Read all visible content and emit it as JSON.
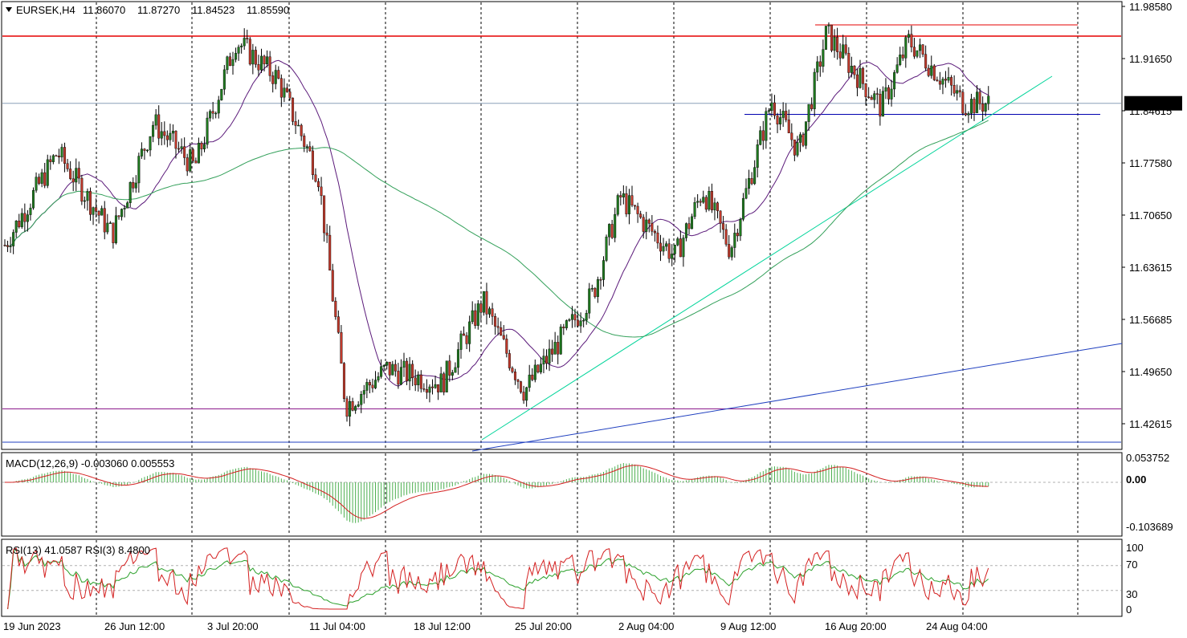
{
  "header": {
    "symbol": "EURSEK,H4",
    "open": "11.86070",
    "high": "11.87270",
    "low": "11.84523",
    "close": "11.85590"
  },
  "price_axis_labels": [
    "11.98580",
    "11.91650",
    "11.84615",
    "11.77580",
    "11.70650",
    "11.63615",
    "11.56685",
    "11.49650",
    "11.42615"
  ],
  "current_price": "11.85590",
  "time_labels": [
    "19 Jun 2023",
    "26 Jun 12:00",
    "3 Jul 20:00",
    "11 Jul 04:00",
    "18 Jul 12:00",
    "25 Jul 20:00",
    "2 Aug 04:00",
    "9 Aug 12:00",
    "16 Aug 20:00",
    "24 Aug 04:00"
  ],
  "macd": {
    "label": "MACD(12,26,9) -0.003060 0.005553",
    "axis": [
      "0.053752",
      "0.00",
      "-0.103689"
    ]
  },
  "rsi": {
    "label": "RSI(13) 41.0587  RSI(3) 8.4800",
    "axis": [
      "100",
      "70",
      "30",
      "0"
    ]
  },
  "colors": {
    "bull": "#1f7a1f",
    "bear": "#c0392b",
    "ma_fast": "#5b1a7a",
    "ma_slow": "#33a05a",
    "resistance": "#e60000",
    "support": "#0000b0",
    "trend_up": "#00d49a",
    "trend_long": "#1f3fbf",
    "low_line": "#8b1a8b",
    "macd_hist": "#4caf50",
    "macd_signal": "#d42020",
    "rsi13": "#2aa02a",
    "rsi3": "#d42020"
  },
  "chart_data": {
    "type": "candlestick",
    "symbol": "EURSEK",
    "timeframe": "H4",
    "date_range": [
      "2023-06-19",
      "2023-08-28"
    ],
    "price_range": [
      11.4,
      11.99
    ],
    "key_closes": [
      {
        "date": "2023-06-19",
        "value": 11.66
      },
      {
        "date": "2023-06-23",
        "value": 11.79
      },
      {
        "date": "2023-06-27",
        "value": 11.68
      },
      {
        "date": "2023-06-30",
        "value": 11.83
      },
      {
        "date": "2023-07-03",
        "value": 11.77
      },
      {
        "date": "2023-07-06",
        "value": 11.94
      },
      {
        "date": "2023-07-09",
        "value": 11.89
      },
      {
        "date": "2023-07-12",
        "value": 11.76
      },
      {
        "date": "2023-07-14",
        "value": 11.45
      },
      {
        "date": "2023-07-17",
        "value": 11.5
      },
      {
        "date": "2023-07-21",
        "value": 11.48
      },
      {
        "date": "2023-07-24",
        "value": 11.59
      },
      {
        "date": "2023-07-27",
        "value": 11.47
      },
      {
        "date": "2023-08-01",
        "value": 11.6
      },
      {
        "date": "2023-08-03",
        "value": 11.73
      },
      {
        "date": "2023-08-07",
        "value": 11.65
      },
      {
        "date": "2023-08-09",
        "value": 11.74
      },
      {
        "date": "2023-08-11",
        "value": 11.66
      },
      {
        "date": "2023-08-14",
        "value": 11.86
      },
      {
        "date": "2023-08-16",
        "value": 11.79
      },
      {
        "date": "2023-08-18",
        "value": 11.95
      },
      {
        "date": "2023-08-22",
        "value": 11.85
      },
      {
        "date": "2023-08-24",
        "value": 11.94
      },
      {
        "date": "2023-08-28",
        "value": 11.8559
      }
    ],
    "lines": {
      "resistance": 11.946,
      "support": 11.841,
      "current": 11.8559,
      "lower_horizontal": 11.446
    },
    "macd_range": [
      -0.103689,
      0.053752
    ],
    "rsi_levels": [
      30,
      70
    ]
  }
}
